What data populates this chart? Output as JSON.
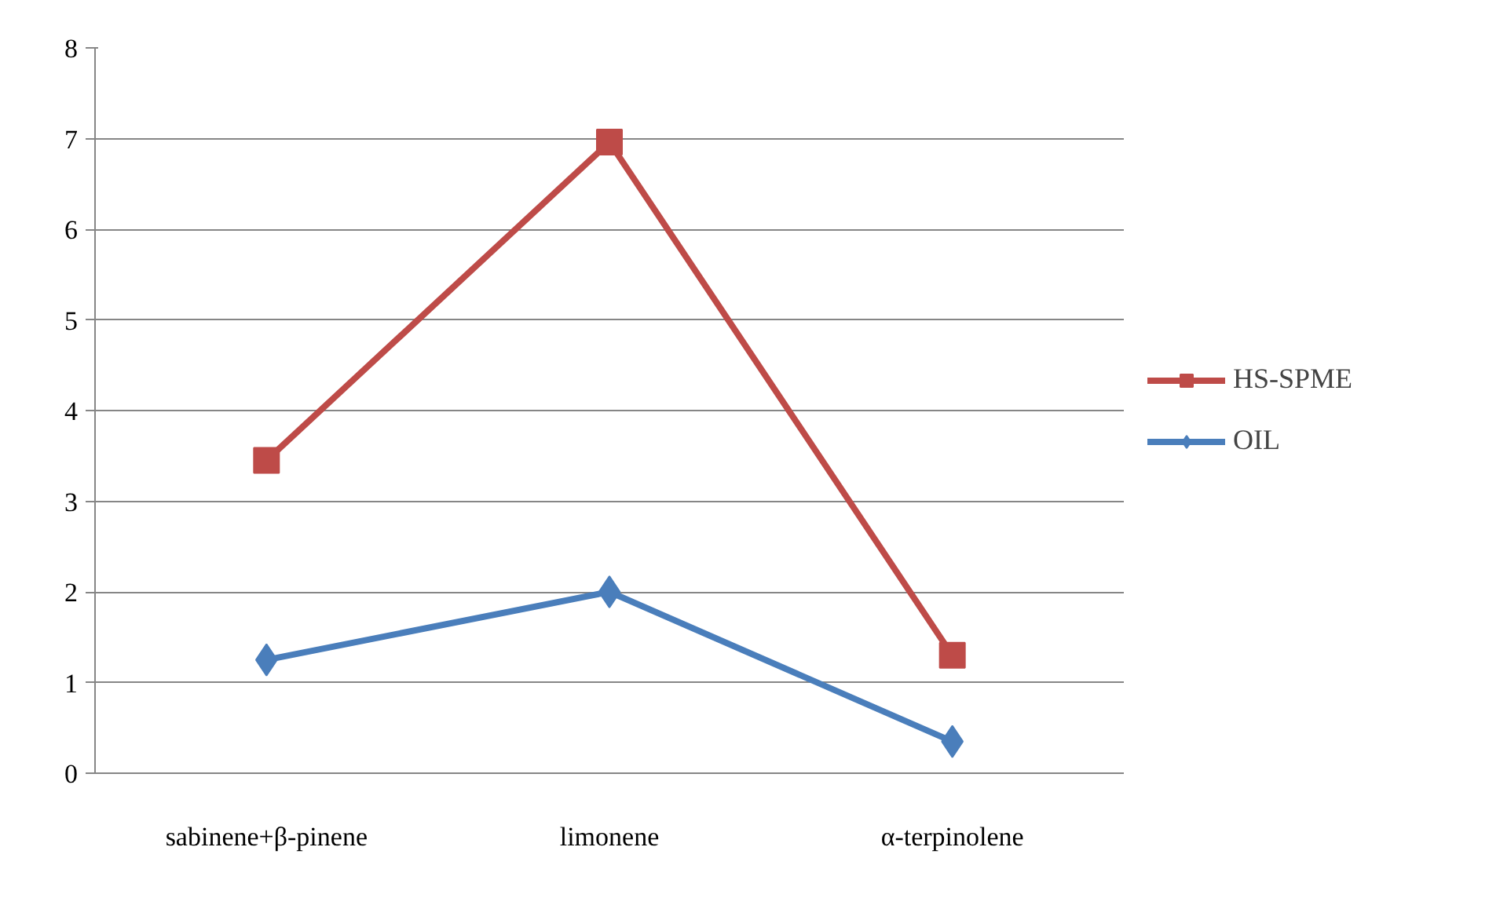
{
  "chart_data": {
    "type": "line",
    "categories": [
      "sabinene+β-pinene",
      "limonene",
      "α-terpinolene"
    ],
    "series": [
      {
        "name": "HS-SPME",
        "color": "#be4b48",
        "marker": "square",
        "values": [
          3.45,
          6.96,
          1.3
        ]
      },
      {
        "name": "OIL",
        "color": "#4a7ebb",
        "marker": "diamond",
        "values": [
          1.25,
          2.0,
          0.35
        ]
      }
    ],
    "ylim": [
      0,
      8
    ],
    "yticks": [
      0,
      1,
      2,
      3,
      4,
      5,
      6,
      7,
      8
    ],
    "grid": "y",
    "legend": "right",
    "line_style": "solid"
  }
}
